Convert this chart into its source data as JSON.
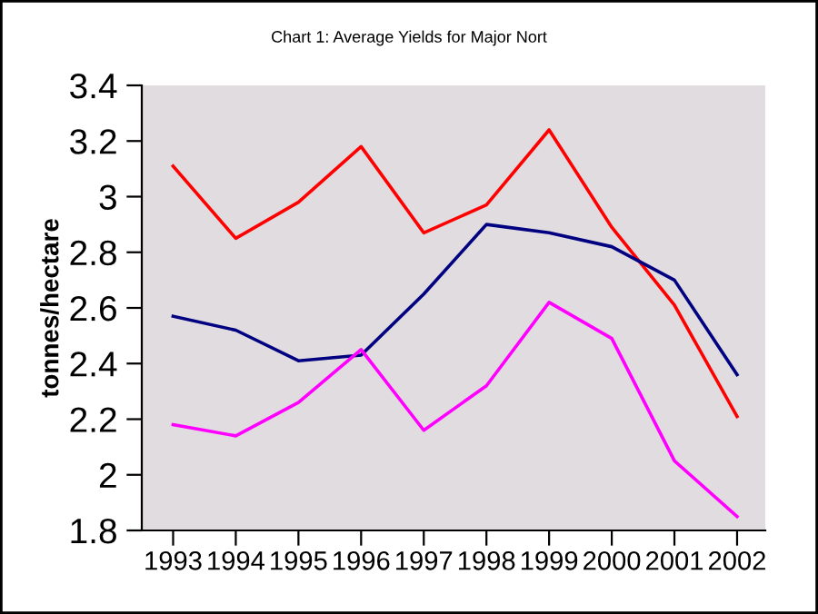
{
  "chart_data": {
    "type": "line",
    "title": "Chart 1: Average Yields for Major Nort",
    "ylabel": "tonnes/hectare",
    "categories": [
      "1993",
      "1994",
      "1995",
      "1996",
      "1997",
      "1998",
      "1999",
      "2000",
      "2001",
      "2002"
    ],
    "series": [
      {
        "color": "#ff0000",
        "values": [
          3.11,
          2.85,
          2.98,
          3.18,
          2.87,
          2.97,
          3.24,
          2.89,
          2.61,
          2.21
        ]
      },
      {
        "color": "#000080",
        "values": [
          2.57,
          2.52,
          2.41,
          2.43,
          2.65,
          2.9,
          2.87,
          2.82,
          2.7,
          2.36
        ]
      },
      {
        "color": "#ff00ff",
        "values": [
          2.18,
          2.14,
          2.26,
          2.45,
          2.16,
          2.32,
          2.62,
          2.49,
          2.05,
          1.85
        ]
      }
    ],
    "ylim": [
      1.8,
      3.4
    ],
    "yticks": [
      1.8,
      2,
      2.2,
      2.4,
      2.6,
      2.8,
      3,
      3.2,
      3.4
    ],
    "grid": false,
    "marker": "none",
    "line_style": "solid"
  }
}
